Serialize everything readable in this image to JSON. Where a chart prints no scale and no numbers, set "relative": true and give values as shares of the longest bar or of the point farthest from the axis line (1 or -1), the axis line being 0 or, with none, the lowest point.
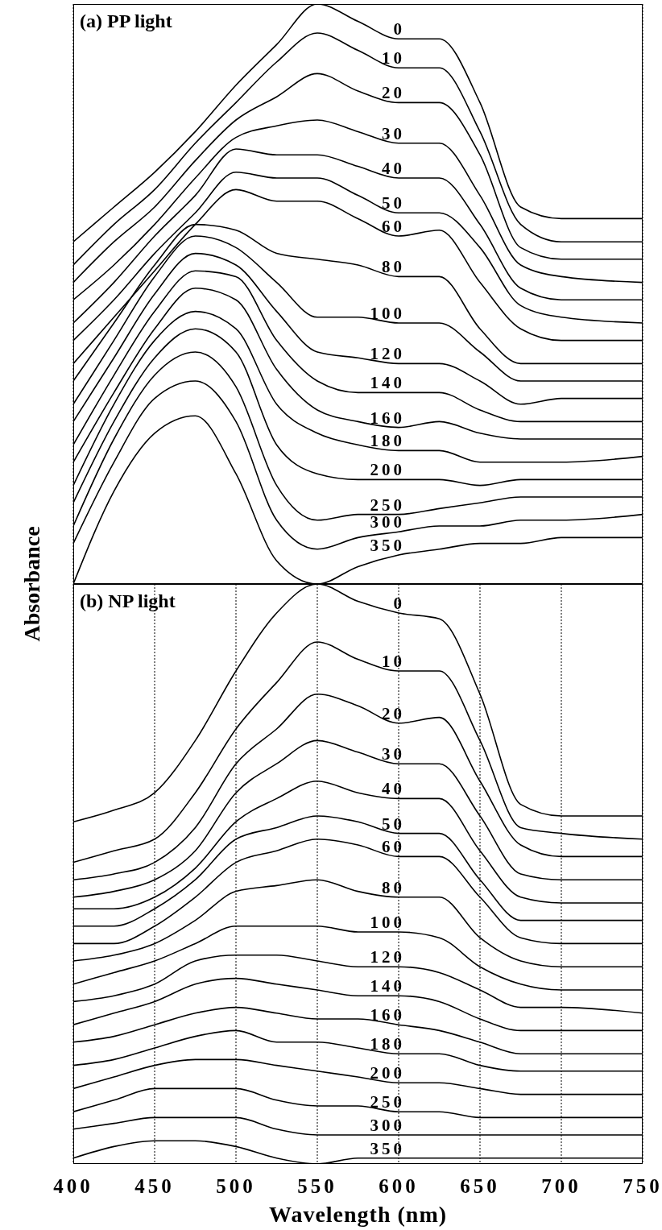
{
  "chart_data": [
    {
      "type": "line",
      "title": "(a) PP light",
      "ylabel": "Absorbance",
      "relative": true,
      "grid": "x",
      "tick_labels": false,
      "x": [
        400,
        425,
        450,
        475,
        500,
        525,
        550,
        575,
        600,
        625,
        650,
        675,
        700,
        750
      ],
      "xlim": [
        400,
        750
      ],
      "xticks": [
        400,
        450,
        500,
        550,
        600,
        650,
        700,
        750
      ],
      "series": [
        {
          "name": "0",
          "color": "#000000",
          "values": [
            0.59,
            0.65,
            0.71,
            0.78,
            0.86,
            0.93,
            1,
            0.97,
            0.94,
            0.94,
            0.83,
            0.65,
            0.63,
            0.63
          ]
        },
        {
          "name": "10",
          "color": "#000000",
          "values": [
            0.55,
            0.62,
            0.68,
            0.76,
            0.83,
            0.9,
            0.95,
            0.92,
            0.89,
            0.89,
            0.78,
            0.62,
            0.59,
            0.59
          ]
        },
        {
          "name": "20",
          "color": "#000000",
          "values": [
            0.52,
            0.59,
            0.65,
            0.73,
            0.8,
            0.84,
            0.88,
            0.85,
            0.83,
            0.83,
            0.74,
            0.58,
            0.56,
            0.56
          ]
        },
        {
          "name": "30",
          "color": "#000000",
          "values": [
            0.49,
            0.55,
            0.62,
            0.7,
            0.77,
            0.79,
            0.8,
            0.78,
            0.76,
            0.76,
            0.67,
            0.55,
            0.53,
            0.52
          ]
        },
        {
          "name": "40",
          "color": "#000000",
          "values": [
            0.45,
            0.52,
            0.6,
            0.67,
            0.75,
            0.74,
            0.74,
            0.72,
            0.7,
            0.7,
            0.62,
            0.51,
            0.49,
            0.49
          ]
        },
        {
          "name": "50",
          "color": "#000000",
          "values": [
            0.42,
            0.49,
            0.57,
            0.64,
            0.71,
            0.7,
            0.7,
            0.67,
            0.64,
            0.64,
            0.58,
            0.48,
            0.46,
            0.45
          ]
        },
        {
          "name": "60",
          "color": "#000000",
          "values": [
            0.38,
            0.46,
            0.54,
            0.62,
            0.68,
            0.66,
            0.66,
            0.63,
            0.6,
            0.61,
            0.52,
            0.44,
            0.42,
            0.42
          ]
        },
        {
          "name": "80",
          "color": "#000000",
          "values": [
            0.35,
            0.45,
            0.55,
            0.62,
            0.61,
            0.57,
            0.56,
            0.55,
            0.53,
            0.53,
            0.44,
            0.38,
            0.38,
            0.38
          ]
        },
        {
          "name": "100",
          "color": "#000000",
          "values": [
            0.31,
            0.42,
            0.53,
            0.6,
            0.58,
            0.52,
            0.46,
            0.46,
            0.45,
            0.45,
            0.4,
            0.35,
            0.35,
            0.35
          ]
        },
        {
          "name": "120",
          "color": "#000000",
          "values": [
            0.28,
            0.39,
            0.5,
            0.57,
            0.55,
            0.47,
            0.4,
            0.39,
            0.38,
            0.38,
            0.35,
            0.31,
            0.32,
            0.32
          ]
        },
        {
          "name": "140",
          "color": "#000000",
          "values": [
            0.24,
            0.36,
            0.47,
            0.54,
            0.53,
            0.42,
            0.35,
            0.33,
            0.33,
            0.33,
            0.3,
            0.28,
            0.28,
            0.28
          ]
        },
        {
          "name": "160",
          "color": "#000000",
          "values": [
            0.21,
            0.33,
            0.44,
            0.51,
            0.49,
            0.37,
            0.3,
            0.28,
            0.27,
            0.28,
            0.26,
            0.25,
            0.25,
            0.25
          ]
        },
        {
          "name": "180",
          "color": "#000000",
          "values": [
            0.17,
            0.31,
            0.42,
            0.47,
            0.44,
            0.31,
            0.26,
            0.24,
            0.23,
            0.23,
            0.21,
            0.21,
            0.21,
            0.22
          ]
        },
        {
          "name": "200",
          "color": "#000000",
          "values": [
            0.14,
            0.28,
            0.39,
            0.44,
            0.4,
            0.24,
            0.19,
            0.18,
            0.18,
            0.18,
            0.17,
            0.18,
            0.18,
            0.18
          ]
        },
        {
          "name": "250",
          "color": "#000000",
          "values": [
            0.1,
            0.25,
            0.36,
            0.4,
            0.34,
            0.17,
            0.11,
            0.12,
            0.12,
            0.13,
            0.14,
            0.15,
            0.15,
            0.15
          ]
        },
        {
          "name": "300",
          "color": "#000000",
          "values": [
            0.07,
            0.21,
            0.32,
            0.35,
            0.28,
            0.11,
            0.06,
            0.08,
            0.09,
            0.1,
            0.1,
            0.11,
            0.11,
            0.12
          ]
        },
        {
          "name": "350",
          "color": "#000000",
          "values": [
            0,
            0.16,
            0.26,
            0.29,
            0.19,
            0.04,
            0,
            0.03,
            0.05,
            0.06,
            0.07,
            0.07,
            0.08,
            0.08
          ]
        }
      ]
    },
    {
      "type": "line",
      "title": "(b) NP light",
      "xlabel": "Wavelength  (nm)",
      "relative": true,
      "grid": "x",
      "tick_labels": "x",
      "x": [
        400,
        425,
        450,
        475,
        500,
        525,
        550,
        575,
        600,
        625,
        650,
        675,
        700,
        750
      ],
      "xlim": [
        400,
        750
      ],
      "xticks": [
        400,
        450,
        500,
        550,
        600,
        650,
        700,
        750
      ],
      "series": [
        {
          "name": "0",
          "color": "#000000",
          "values": [
            0.59,
            0.61,
            0.64,
            0.73,
            0.85,
            0.95,
            1,
            0.97,
            0.95,
            0.94,
            0.81,
            0.62,
            0.6,
            0.6
          ]
        },
        {
          "name": "10",
          "color": "#000000",
          "values": [
            0.52,
            0.54,
            0.56,
            0.64,
            0.75,
            0.83,
            0.9,
            0.87,
            0.85,
            0.85,
            0.73,
            0.58,
            0.57,
            0.56
          ]
        },
        {
          "name": "20",
          "color": "#000000",
          "values": [
            0.49,
            0.5,
            0.52,
            0.58,
            0.69,
            0.75,
            0.81,
            0.79,
            0.76,
            0.77,
            0.66,
            0.55,
            0.53,
            0.53
          ]
        },
        {
          "name": "30",
          "color": "#000000",
          "values": [
            0.46,
            0.47,
            0.49,
            0.54,
            0.64,
            0.69,
            0.73,
            0.71,
            0.69,
            0.69,
            0.6,
            0.5,
            0.49,
            0.49
          ]
        },
        {
          "name": "40",
          "color": "#000000",
          "values": [
            0.44,
            0.44,
            0.46,
            0.51,
            0.59,
            0.63,
            0.66,
            0.64,
            0.63,
            0.63,
            0.54,
            0.46,
            0.45,
            0.45
          ]
        },
        {
          "name": "50",
          "color": "#000000",
          "values": [
            0.41,
            0.41,
            0.44,
            0.49,
            0.56,
            0.58,
            0.6,
            0.59,
            0.57,
            0.57,
            0.49,
            0.42,
            0.42,
            0.42
          ]
        },
        {
          "name": "60",
          "color": "#000000",
          "values": [
            0.38,
            0.38,
            0.41,
            0.46,
            0.52,
            0.54,
            0.56,
            0.55,
            0.53,
            0.53,
            0.46,
            0.39,
            0.38,
            0.38
          ]
        },
        {
          "name": "80",
          "color": "#000000",
          "values": [
            0.35,
            0.36,
            0.38,
            0.42,
            0.47,
            0.48,
            0.49,
            0.47,
            0.46,
            0.46,
            0.39,
            0.35,
            0.34,
            0.34
          ]
        },
        {
          "name": "100",
          "color": "#000000",
          "values": [
            0.31,
            0.33,
            0.35,
            0.38,
            0.41,
            0.41,
            0.41,
            0.4,
            0.4,
            0.39,
            0.34,
            0.31,
            0.3,
            0.3
          ]
        },
        {
          "name": "120",
          "color": "#000000",
          "values": [
            0.28,
            0.29,
            0.31,
            0.35,
            0.36,
            0.36,
            0.35,
            0.34,
            0.34,
            0.33,
            0.3,
            0.27,
            0.27,
            0.26
          ]
        },
        {
          "name": "140",
          "color": "#000000",
          "values": [
            0.24,
            0.26,
            0.28,
            0.31,
            0.32,
            0.31,
            0.3,
            0.29,
            0.29,
            0.28,
            0.25,
            0.23,
            0.23,
            0.23
          ]
        },
        {
          "name": "160",
          "color": "#000000",
          "values": [
            0.21,
            0.22,
            0.24,
            0.26,
            0.27,
            0.26,
            0.25,
            0.25,
            0.24,
            0.23,
            0.21,
            0.19,
            0.19,
            0.19
          ]
        },
        {
          "name": "180",
          "color": "#000000",
          "values": [
            0.17,
            0.18,
            0.2,
            0.22,
            0.23,
            0.21,
            0.21,
            0.2,
            0.19,
            0.19,
            0.17,
            0.16,
            0.16,
            0.16
          ]
        },
        {
          "name": "200",
          "color": "#000000",
          "values": [
            0.13,
            0.15,
            0.17,
            0.18,
            0.18,
            0.17,
            0.16,
            0.15,
            0.14,
            0.14,
            0.13,
            0.12,
            0.12,
            0.12
          ]
        },
        {
          "name": "250",
          "color": "#000000",
          "values": [
            0.09,
            0.11,
            0.13,
            0.13,
            0.13,
            0.11,
            0.1,
            0.1,
            0.09,
            0.09,
            0.08,
            0.08,
            0.08,
            0.08
          ]
        },
        {
          "name": "300",
          "color": "#000000",
          "values": [
            0.06,
            0.07,
            0.08,
            0.08,
            0.08,
            0.06,
            0.05,
            0.05,
            0.05,
            0.05,
            0.05,
            0.05,
            0.05,
            0.05
          ]
        },
        {
          "name": "350",
          "color": "#000000",
          "values": [
            0.01,
            0.03,
            0.04,
            0.04,
            0.03,
            0.01,
            0,
            0.01,
            0.01,
            0.01,
            0.01,
            0.01,
            0.01,
            0.01
          ]
        }
      ]
    }
  ]
}
